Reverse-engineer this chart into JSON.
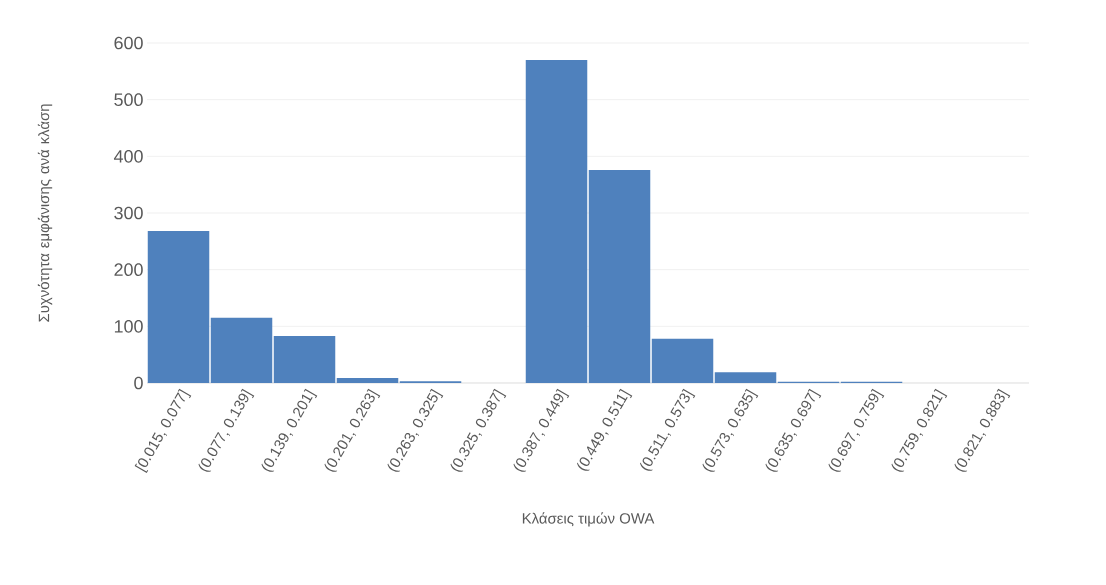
{
  "chart_data": {
    "type": "bar",
    "xlabel": "Κλάσεις τιμών OWA",
    "ylabel": "Συχνότητα εμφάνισης ανά κλάση",
    "categories": [
      "[0.015, 0.077]",
      "(0.077, 0.139]",
      "(0.139, 0.201]",
      "(0.201, 0.263]",
      "(0.263, 0.325]",
      "(0.325, 0.387]",
      "(0.387, 0.449]",
      "(0.449, 0.511]",
      "(0.511, 0.573]",
      "(0.573, 0.635]",
      "(0.635, 0.697]",
      "(0.697, 0.759]",
      "(0.759, 0.821]",
      "(0.821, 0.883]"
    ],
    "values": [
      268,
      115,
      83,
      9,
      3,
      0,
      570,
      376,
      78,
      19,
      2,
      2,
      0,
      0
    ],
    "color": "#4f81bd",
    "ylim": [
      0,
      600
    ],
    "yticks": [
      0,
      100,
      200,
      300,
      400,
      500,
      600
    ],
    "grid": "y"
  }
}
